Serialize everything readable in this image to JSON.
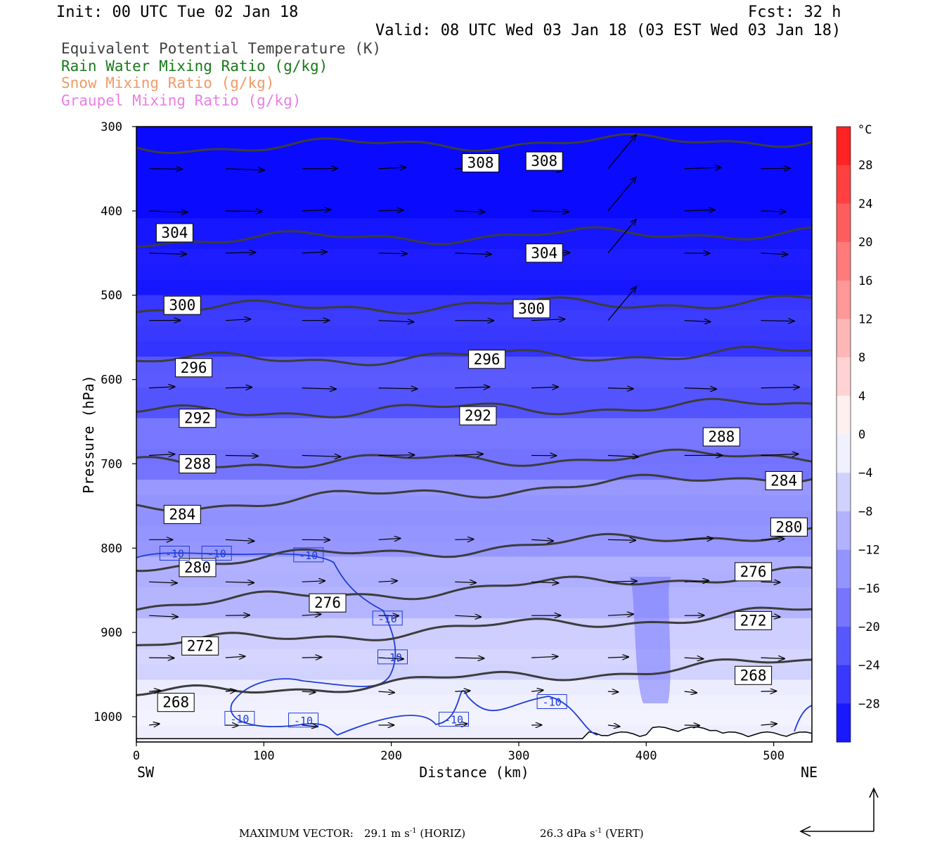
{
  "header": {
    "init": "Init: 00 UTC Tue 02 Jan 18",
    "fcst": "Fcst:   32 h",
    "valid": "Valid: 08 UTC Wed 03 Jan 18 (03 EST Wed 03 Jan 18)"
  },
  "fields": [
    {
      "label": "Equivalent Potential Temperature (K)",
      "color": "#404040"
    },
    {
      "label": "Rain Water Mixing Ratio (g/kg)",
      "color": "#1a7a1a"
    },
    {
      "label": "Snow Mixing Ratio (g/kg)",
      "color": "#f09a66"
    },
    {
      "label": "Graupel Mixing Ratio (g/kg)",
      "color": "#ea7ee6"
    }
  ],
  "chart_data": {
    "type": "cross-section",
    "xlabel": "Distance (km)",
    "ylabel": "Pressure (hPa)",
    "xlim": [
      0,
      530
    ],
    "ylim": [
      300,
      1030
    ],
    "x_ticks": [
      0,
      100,
      200,
      300,
      400,
      500
    ],
    "y_ticks": [
      300,
      400,
      500,
      600,
      700,
      800,
      900,
      1000
    ],
    "endpoints": {
      "left": "SW",
      "right": "NE"
    },
    "colorbar": {
      "unit": "°C",
      "ticks": [
        28,
        24,
        20,
        16,
        12,
        8,
        4,
        0,
        -4,
        -8,
        -12,
        -16,
        -20,
        -24,
        -28
      ],
      "range": [
        -32,
        32
      ]
    },
    "theta_e_contours": [
      {
        "value": 308,
        "pressure": 325,
        "labels": [
          [
            270,
            343
          ],
          [
            320,
            341
          ]
        ]
      },
      {
        "value": 304,
        "pressure": 435,
        "labels": [
          [
            30,
            426
          ],
          [
            320,
            450
          ]
        ]
      },
      {
        "value": 300,
        "pressure": 517,
        "labels": [
          [
            36,
            512
          ],
          [
            310,
            516
          ]
        ]
      },
      {
        "value": 296,
        "pressure": 578,
        "labels": [
          [
            45,
            586
          ],
          [
            275,
            576
          ]
        ]
      },
      {
        "value": 292,
        "pressure": 640,
        "labels": [
          [
            48,
            646
          ],
          [
            268,
            643
          ]
        ]
      },
      {
        "value": 288,
        "pressure": 700,
        "labels": [
          [
            48,
            700
          ],
          [
            459,
            668
          ]
        ]
      },
      {
        "value": 284,
        "pressure": 752,
        "labels": [
          [
            36,
            760
          ],
          [
            508,
            720
          ]
        ]
      },
      {
        "value": 280,
        "pressure": 820,
        "labels": [
          [
            48,
            823
          ],
          [
            512,
            775
          ]
        ]
      },
      {
        "value": 276,
        "pressure": 868,
        "labels": [
          [
            150,
            865
          ],
          [
            484,
            828
          ]
        ]
      },
      {
        "value": 272,
        "pressure": 915,
        "labels": [
          [
            50,
            916
          ],
          [
            484,
            886
          ]
        ]
      },
      {
        "value": 268,
        "pressure": 975,
        "labels": [
          [
            31,
            983
          ],
          [
            484,
            951
          ]
        ]
      }
    ],
    "isotherm_labels": {
      "value": "-10",
      "points": [
        [
          30,
          806
        ],
        [
          63,
          806
        ],
        [
          135,
          808
        ],
        [
          197,
          883
        ],
        [
          201,
          929
        ],
        [
          81,
          1002
        ],
        [
          131,
          1004
        ],
        [
          249,
          1003
        ],
        [
          326,
          982
        ]
      ]
    },
    "vector_scale": {
      "label": "MAXIMUM VECTOR:",
      "horizontal": "29.1 m s",
      "horizontal_unit": "(HORIZ)",
      "vertical": "26.3 dPa s",
      "vertical_unit": "(VERT)",
      "superscript": "-1"
    }
  }
}
